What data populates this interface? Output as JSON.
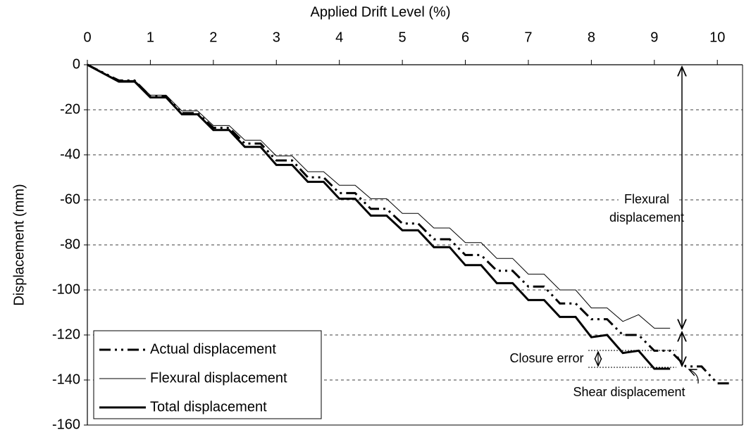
{
  "chart_data": {
    "type": "line",
    "x_label": "Applied Drift Level (%)",
    "y_label": "Displacement (mm)",
    "xlim": [
      0,
      10.4
    ],
    "ylim": [
      -160,
      0
    ],
    "xticks": [
      0,
      1,
      2,
      3,
      4,
      5,
      6,
      7,
      8,
      9,
      10
    ],
    "yticks": [
      0,
      -20,
      -40,
      -60,
      -80,
      -100,
      -120,
      -140,
      -160
    ],
    "grid": true,
    "legend": "lower left",
    "series": [
      {
        "name": "Actual displacement",
        "color": "#000000",
        "style": "dash-dot",
        "x": [
          0,
          0.5,
          0.75,
          1,
          1.25,
          1.5,
          1.75,
          2,
          2.25,
          2.5,
          2.75,
          3,
          3.25,
          3.5,
          3.75,
          4,
          4.25,
          4.5,
          4.75,
          5,
          5.25,
          5.5,
          5.75,
          6,
          6.25,
          6.5,
          6.75,
          7,
          7.25,
          7.5,
          7.75,
          8,
          8.25,
          8.5,
          8.75,
          9,
          9.25,
          9.5,
          9.75,
          10,
          10.25
        ],
        "values": [
          0,
          -7,
          -7,
          -14,
          -14,
          -21.5,
          -21.5,
          -28,
          -28,
          -35,
          -35,
          -42.5,
          -42.5,
          -50,
          -50,
          -57,
          -57,
          -64,
          -64,
          -70.5,
          -70.5,
          -77.5,
          -77.5,
          -84.5,
          -84.5,
          -91.5,
          -91.5,
          -98.5,
          -98.5,
          -106,
          -106,
          -113,
          -113,
          -120,
          -120,
          -127,
          -127,
          -134,
          -134,
          -141.5,
          -141.5
        ]
      },
      {
        "name": "Flexural displacement",
        "color": "#000000",
        "style": "thin",
        "x": [
          0,
          0.5,
          0.75,
          1,
          1.25,
          1.5,
          1.75,
          2,
          2.25,
          2.5,
          2.75,
          3,
          3.25,
          3.5,
          3.75,
          4,
          4.25,
          4.5,
          4.75,
          5,
          5.25,
          5.5,
          5.75,
          6,
          6.25,
          6.5,
          6.75,
          7,
          7.25,
          7.5,
          7.75,
          8,
          8.25,
          8.5,
          8.75,
          9,
          9.25
        ],
        "values": [
          0,
          -7,
          -7,
          -13.5,
          -13.5,
          -20.5,
          -20.5,
          -27,
          -27,
          -33.5,
          -33.5,
          -40.5,
          -40.5,
          -47.5,
          -47.5,
          -53.5,
          -53.5,
          -59.5,
          -59.5,
          -66,
          -66,
          -72.5,
          -72.5,
          -79,
          -79,
          -86,
          -86,
          -93,
          -93,
          -100,
          -100,
          -108,
          -108,
          -114,
          -111,
          -117,
          -117
        ]
      },
      {
        "name": "Total displacement",
        "color": "#000000",
        "style": "thick",
        "x": [
          0,
          0.5,
          0.75,
          1,
          1.25,
          1.5,
          1.75,
          2,
          2.25,
          2.5,
          2.75,
          3,
          3.25,
          3.5,
          3.75,
          4,
          4.25,
          4.5,
          4.75,
          5,
          5.25,
          5.5,
          5.75,
          6,
          6.25,
          6.5,
          6.75,
          7,
          7.25,
          7.5,
          7.75,
          8,
          8.25,
          8.5,
          8.75,
          9,
          9.25
        ],
        "values": [
          0,
          -7.5,
          -7.5,
          -14.5,
          -14.5,
          -22,
          -22,
          -29,
          -29,
          -36.5,
          -36.5,
          -44.5,
          -44.5,
          -52,
          -52,
          -59.5,
          -59.5,
          -67,
          -67,
          -73.5,
          -73.5,
          -81,
          -81,
          -89,
          -89,
          -97,
          -97,
          -104.5,
          -104.5,
          -112,
          -112,
          -121,
          -120,
          -128,
          -127,
          -135,
          -135
        ]
      }
    ],
    "annotations": {
      "flexural": [
        "Flexural",
        "displacement"
      ],
      "closure": "Closure error",
      "shear": "Shear displacement"
    }
  }
}
